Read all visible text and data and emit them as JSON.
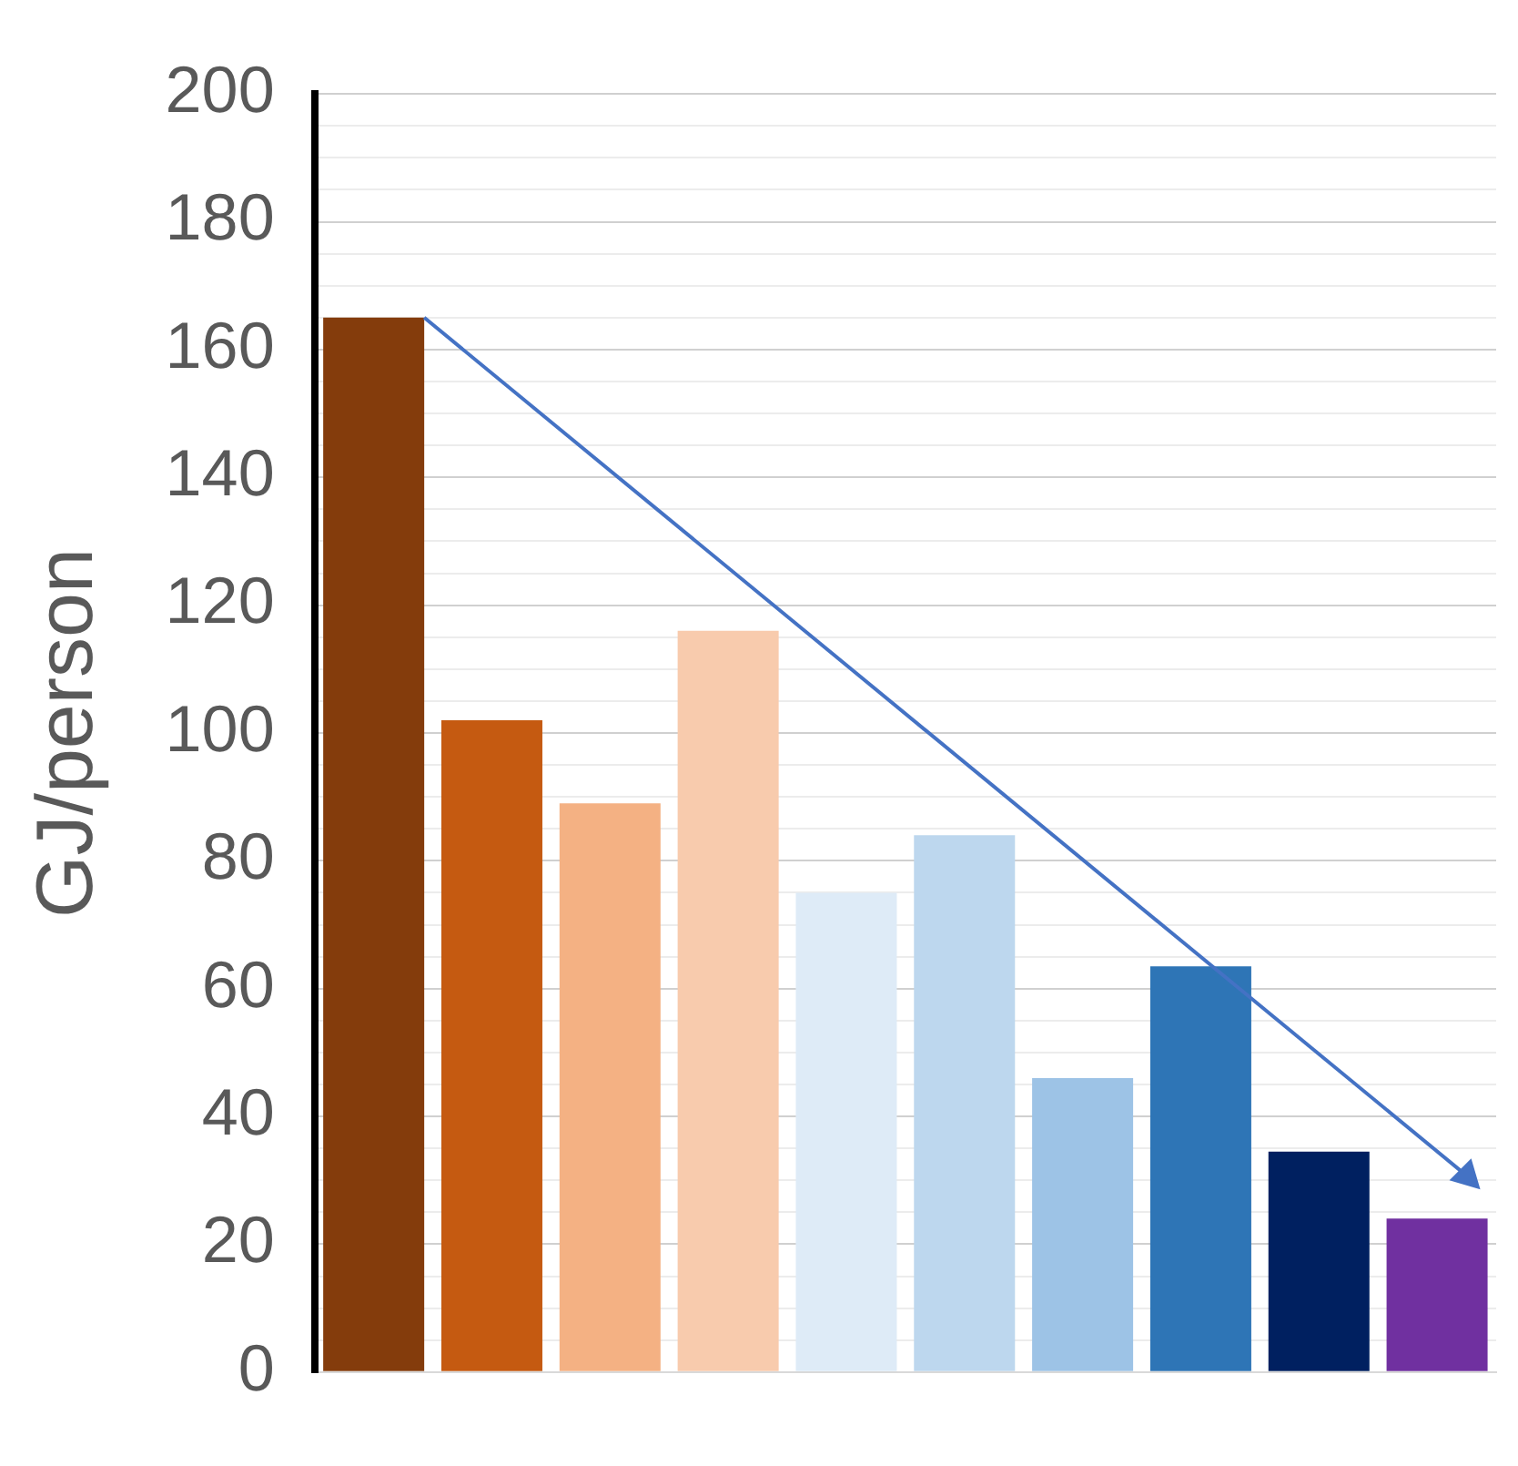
{
  "chart_data": {
    "type": "bar",
    "ylabel": "GJ/person",
    "categories": [
      null,
      null,
      null,
      null,
      null,
      null,
      null,
      null,
      null,
      null
    ],
    "values": [
      165,
      102,
      89,
      116,
      75,
      84,
      46,
      63.5,
      34.5,
      24
    ],
    "colors": [
      "#843c0c",
      "#c55a11",
      "#f4b183",
      "#f8cbad",
      "#deebf7",
      "#bdd7ee",
      "#9dc3e6",
      "#2e75b6",
      "#002060",
      "#7030a0"
    ],
    "ylim": [
      0,
      200
    ],
    "yticks": [
      0,
      {
        "value": 5,
        "label": null
      },
      {
        "value": 10,
        "label": null
      },
      {
        "value": 15,
        "label": null
      },
      20,
      {
        "value": 25,
        "label": null
      },
      {
        "value": 30,
        "label": null
      },
      {
        "value": 35,
        "label": null
      },
      40,
      {
        "value": 45,
        "label": null
      },
      {
        "value": 50,
        "label": null
      },
      {
        "value": 55,
        "label": null
      },
      60,
      {
        "value": 65,
        "label": null
      },
      {
        "value": 70,
        "label": null
      },
      {
        "value": 75,
        "label": null
      },
      80,
      {
        "value": 85,
        "label": null
      },
      {
        "value": 90,
        "label": null
      },
      {
        "value": 95,
        "label": null
      },
      100,
      {
        "value": 105,
        "label": null
      },
      {
        "value": 110,
        "label": null
      },
      {
        "value": 115,
        "label": null
      },
      120,
      {
        "value": 125,
        "label": null
      },
      {
        "value": 130,
        "label": null
      },
      {
        "value": 135,
        "label": null
      },
      140,
      {
        "value": 145,
        "label": null
      },
      {
        "value": 150,
        "label": null
      },
      {
        "value": 155,
        "label": null
      },
      160,
      {
        "value": 165,
        "label": null
      },
      {
        "value": 170,
        "label": null
      },
      {
        "value": 175,
        "label": null
      },
      180,
      {
        "value": 185,
        "label": null
      },
      {
        "value": 190,
        "label": null
      },
      {
        "value": 195,
        "label": null
      },
      200
    ],
    "grid": "y"
  }
}
